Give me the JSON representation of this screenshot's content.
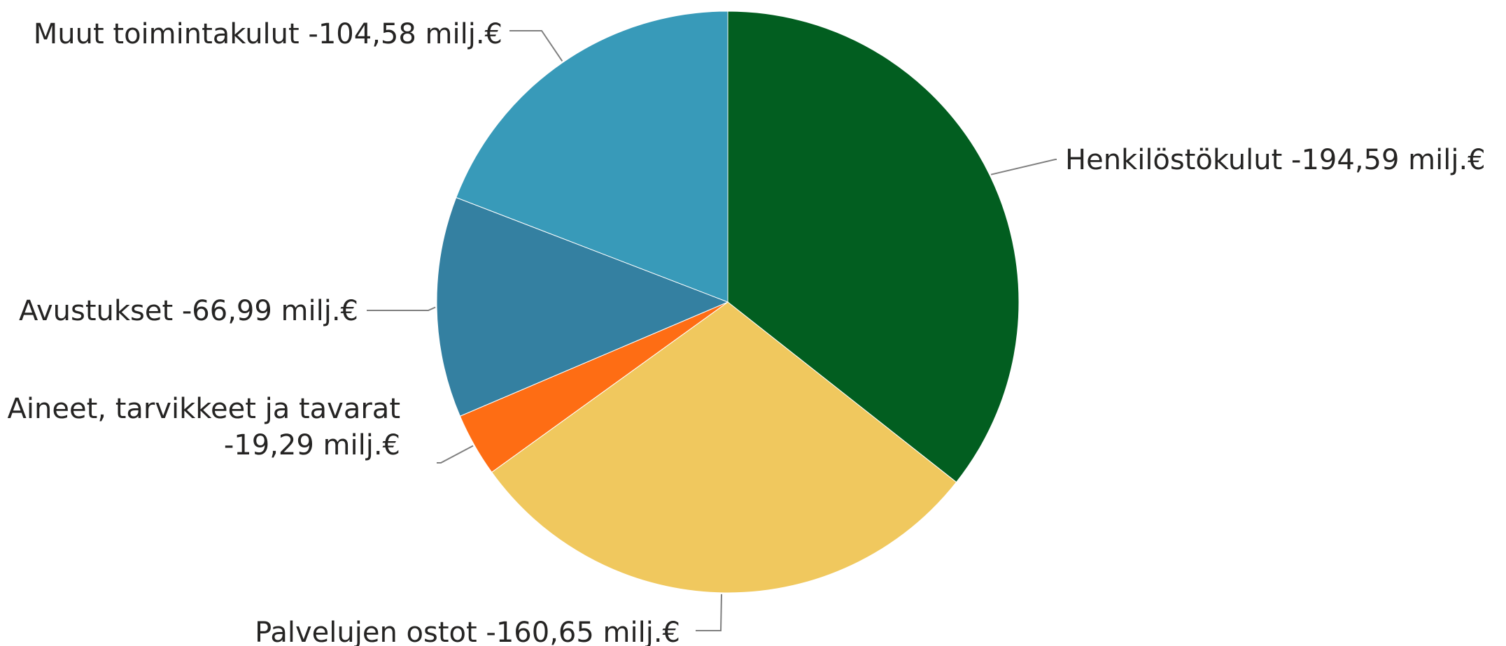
{
  "chart_data": {
    "type": "pie",
    "unit": "milj.€",
    "start_angle_deg": 0,
    "direction": "clockwise",
    "legend": "none",
    "slices": [
      {
        "name": "Henkilöstökulut",
        "value": -194.59,
        "label_lines": [
          "Henkilöstökulut -194,59 milj.€"
        ],
        "color": "#025E20"
      },
      {
        "name": "Palvelujen ostot",
        "value": -160.65,
        "label_lines": [
          "Palvelujen ostot -160,65 milj.€"
        ],
        "color": "#F0C85E"
      },
      {
        "name": "Aineet, tarvikkeet ja tavarat",
        "value": -19.29,
        "label_lines": [
          "Aineet, tarvikkeet ja tavarat",
          "-19,29 milj.€"
        ],
        "color": "#FE6D14"
      },
      {
        "name": "Avustukset",
        "value": -66.99,
        "label_lines": [
          "Avustukset -66,99 milj.€"
        ],
        "color": "#3480A1"
      },
      {
        "name": "Muut toimintakulut",
        "value": -104.58,
        "label_lines": [
          "Muut toimintakulut -104,58 milj.€"
        ],
        "color": "#389AB9"
      }
    ]
  }
}
